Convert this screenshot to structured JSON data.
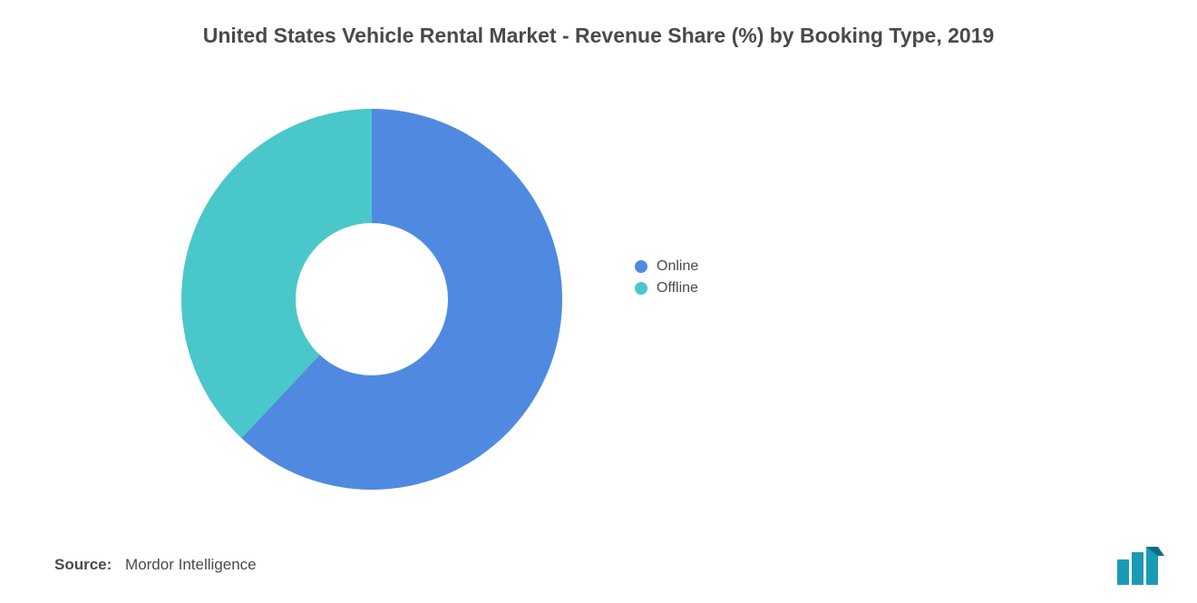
{
  "title": "United States Vehicle Rental Market - Revenue Share (%) by Booking Type, 2019",
  "chart": {
    "type": "donut",
    "slices": [
      {
        "label": "Online",
        "value": 62,
        "color": "#4f8ae0"
      },
      {
        "label": "Offline",
        "value": 38,
        "color": "#4ac7ca"
      }
    ],
    "start_angle_deg": 0,
    "inner_radius_ratio": 0.4,
    "background_color": "#ffffff",
    "rotation_direction": "clockwise"
  },
  "legend": {
    "items": [
      {
        "label": "Online",
        "color": "#4f8ae0"
      },
      {
        "label": "Offline",
        "color": "#4ac7ca"
      }
    ],
    "font_size": 16,
    "text_color": "#4a4a4a",
    "dot_radius": 7
  },
  "title_style": {
    "font_size": 23,
    "font_weight": 600,
    "color": "#4a4a4a"
  },
  "source": {
    "label": "Source:",
    "value": "Mordor Intelligence",
    "font_size": 17,
    "color": "#4a4a4a"
  },
  "logo": {
    "bar_color": "#1a9bb5",
    "accent_color": "#0f6d82"
  }
}
